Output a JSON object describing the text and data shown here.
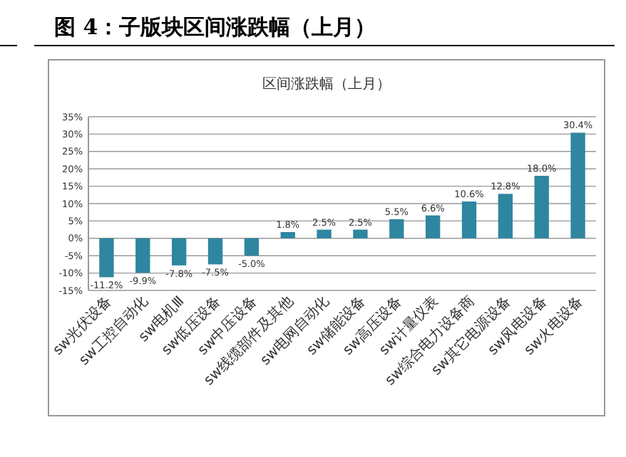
{
  "chart_data": {
    "type": "bar",
    "title": "图 4：子版块区间涨跌幅（上月）",
    "subtitle": "区间涨跌幅（上月）",
    "categories": [
      "sw光伏设备",
      "sw工控自动化",
      "sw电机Ⅲ",
      "sw低压设备",
      "sw中压设备",
      "sw线缆部件及其他",
      "sw电网自动化",
      "sw储能设备",
      "sw高压设备",
      "sw计量仪表",
      "sw综合电力设备商",
      "sw其它电源设备",
      "sw风电设备",
      "sw火电设备"
    ],
    "values": [
      -11.2,
      -9.9,
      -7.8,
      -7.5,
      -5.0,
      1.8,
      2.5,
      2.5,
      5.5,
      6.6,
      10.6,
      12.8,
      18.0,
      30.4
    ],
    "value_labels": [
      "-11.2%",
      "-9.9%",
      "-7.8%",
      "-7.5%",
      "-5.0%",
      "1.8%",
      "2.5%",
      "2.5%",
      "5.5%",
      "6.6%",
      "10.6%",
      "12.8%",
      "18.0%",
      "30.4%"
    ],
    "color": "#2e86a0",
    "ylim": [
      -15,
      35
    ],
    "yticks": [
      {
        "value": -15,
        "label": "-15%"
      },
      {
        "value": -10,
        "label": "-10%"
      },
      {
        "value": -5,
        "label": "-5%"
      },
      {
        "value": 0,
        "label": "0%"
      },
      {
        "value": 5,
        "label": "5%"
      },
      {
        "value": 10,
        "label": "10%"
      },
      {
        "value": 15,
        "label": "15%"
      },
      {
        "value": 20,
        "label": "20%"
      },
      {
        "value": 25,
        "label": "25%"
      },
      {
        "value": 30,
        "label": "30%"
      },
      {
        "value": 35,
        "label": "35%"
      }
    ],
    "grid": "y"
  }
}
